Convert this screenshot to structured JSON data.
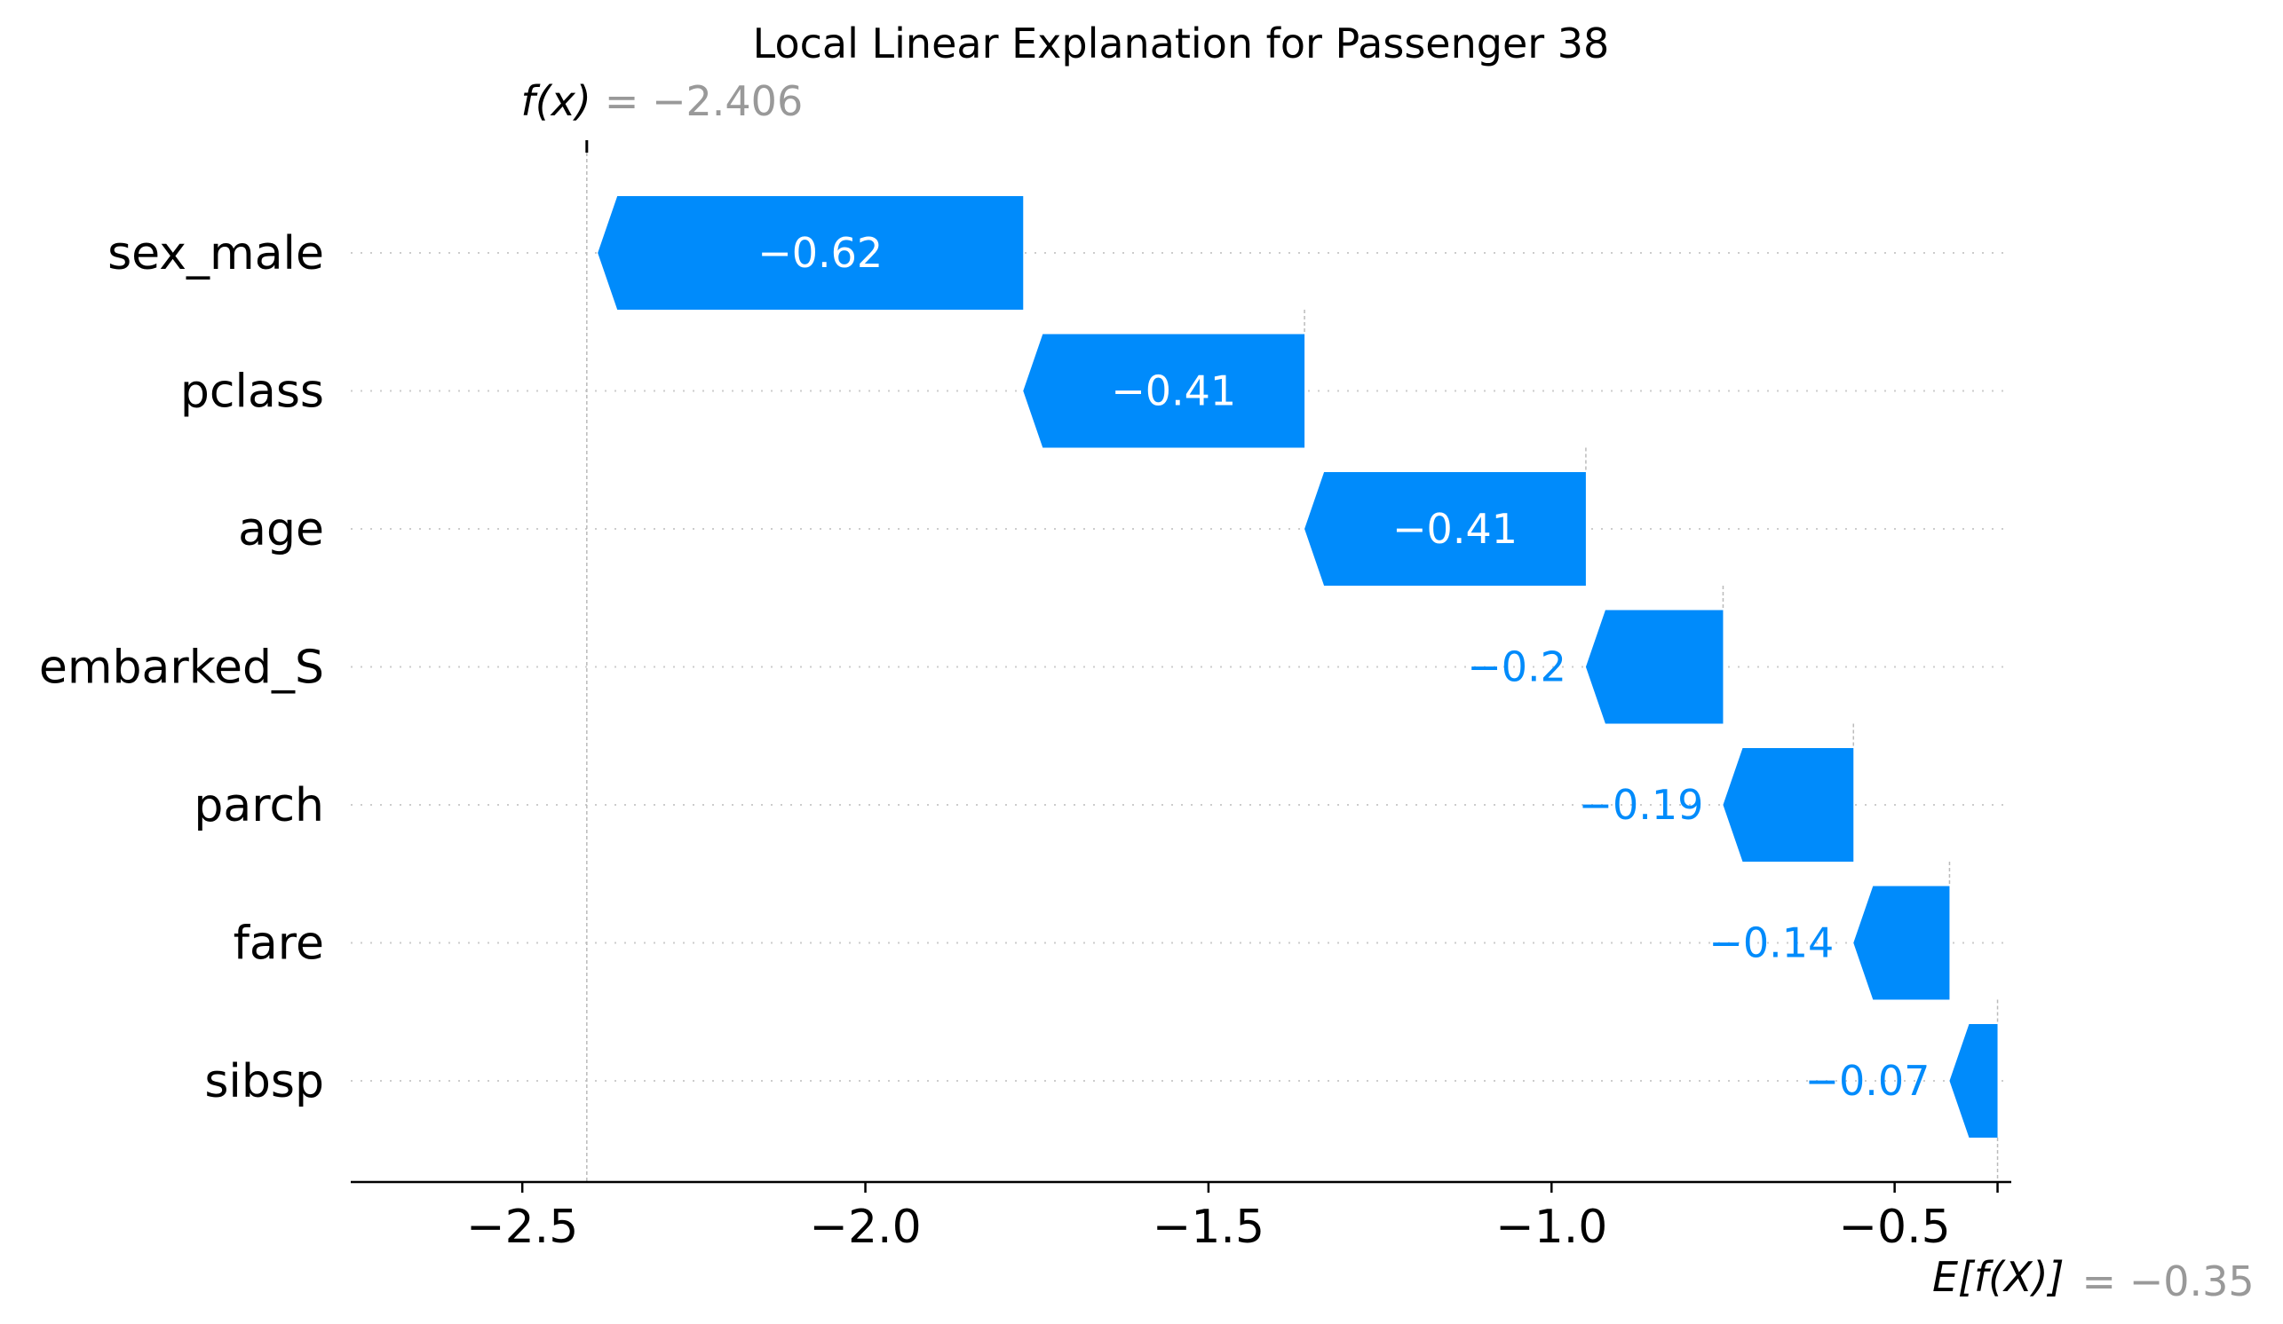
{
  "chart_data": {
    "type": "bar",
    "subtype": "waterfall",
    "title": "Local Linear Explanation for Passenger 38",
    "orientation": "horizontal",
    "base_value": -0.35,
    "base_value_label": "E[f(X)]",
    "base_value_text": "= −0.35",
    "output_value": -2.406,
    "output_value_label": "f(x)",
    "output_value_text": "= −2.406",
    "categories": [
      "sex_male",
      "pclass",
      "age",
      "embarked_S",
      "parch",
      "fare",
      "sibsp"
    ],
    "values": [
      -0.62,
      -0.41,
      -0.41,
      -0.2,
      -0.19,
      -0.14,
      -0.07
    ],
    "value_labels": [
      "−0.62",
      "−0.41",
      "−0.41",
      "−0.2",
      "−0.19",
      "−0.14",
      "−0.07"
    ],
    "xlim": [
      -2.75,
      -0.33
    ],
    "xticks": [
      -2.5,
      -2.0,
      -1.5,
      -1.0,
      -0.5
    ],
    "xtick_labels": [
      "−2.5",
      "−2.0",
      "−1.5",
      "−1.0",
      "−0.5"
    ],
    "xlabel": "",
    "ylabel": "",
    "grid": "dotted horizontal row guides",
    "colors": {
      "negative": "#008bfb",
      "base_value_text": "#999999",
      "guide": "#cccccc",
      "axis": "#000000"
    }
  }
}
